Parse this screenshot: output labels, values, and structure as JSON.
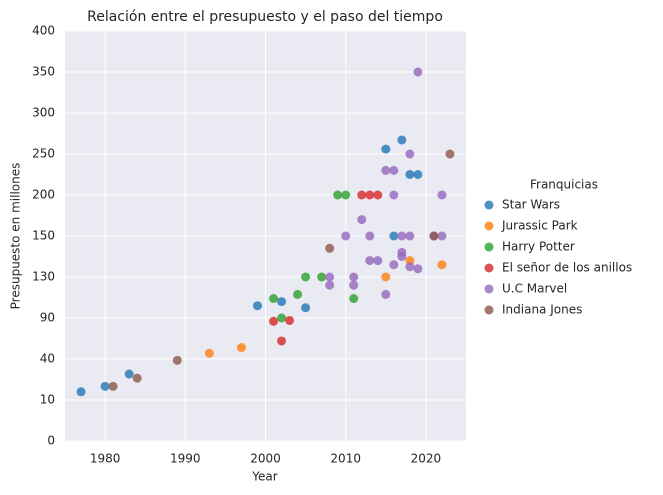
{
  "chart_data": {
    "type": "scatter",
    "title": "Relación entre el presupuesto y el paso del tiempo",
    "xlabel": "Year",
    "ylabel": "Presupuesto en millones",
    "legend_title": "Franquicias",
    "legend": "right",
    "xlim": [
      1975,
      2025
    ],
    "xticks": [
      1980,
      1990,
      2000,
      2010,
      2020
    ],
    "ylim": [
      0,
      400
    ],
    "yticks": [
      0,
      10,
      40,
      90,
      130,
      150,
      200,
      250,
      300,
      350,
      400
    ],
    "y_scale": "piecewise",
    "grid": true,
    "series": [
      {
        "name": "Star Wars",
        "color": "#1f77b4",
        "x": [
          1977,
          1980,
          1983,
          1999,
          2002,
          2005,
          2015,
          2016,
          2017,
          2018,
          2019
        ],
        "values": [
          16,
          20,
          29,
          102,
          106,
          100,
          256,
          150,
          267,
          225,
          225
        ]
      },
      {
        "name": "Jurassic Park",
        "color": "#ff7f0e",
        "x": [
          1993,
          1997,
          2015,
          2018,
          2022
        ],
        "values": [
          47,
          54,
          130,
          138,
          136
        ]
      },
      {
        "name": "Harry Potter",
        "color": "#2ca02c",
        "x": [
          2001,
          2002,
          2004,
          2005,
          2007,
          2009,
          2010,
          2011
        ],
        "values": [
          109,
          90,
          113,
          130,
          130,
          200,
          200,
          109
        ]
      },
      {
        "name": "El señor de los anillos",
        "color": "#d62728",
        "x": [
          2001,
          2002,
          2003,
          2012,
          2013,
          2014
        ],
        "values": [
          86,
          62,
          87,
          200,
          200,
          200
        ]
      },
      {
        "name": "U.C Marvel",
        "color": "#9467bd",
        "x": [
          2008,
          2008,
          2010,
          2011,
          2011,
          2012,
          2013,
          2013,
          2014,
          2015,
          2015,
          2016,
          2016,
          2016,
          2017,
          2017,
          2017,
          2018,
          2018,
          2018,
          2019,
          2019,
          2021,
          2022,
          2022
        ],
        "values": [
          130,
          122,
          150,
          130,
          122,
          170,
          150,
          138,
          138,
          230,
          113,
          230,
          200,
          136,
          150,
          142,
          140,
          150,
          250,
          135,
          134,
          350,
          150,
          150,
          200
        ]
      },
      {
        "name": "Indiana Jones",
        "color": "#8c564b",
        "x": [
          1981,
          1984,
          1989,
          2008,
          2021,
          2023
        ],
        "values": [
          20,
          26,
          39,
          144,
          150,
          250
        ]
      }
    ]
  }
}
